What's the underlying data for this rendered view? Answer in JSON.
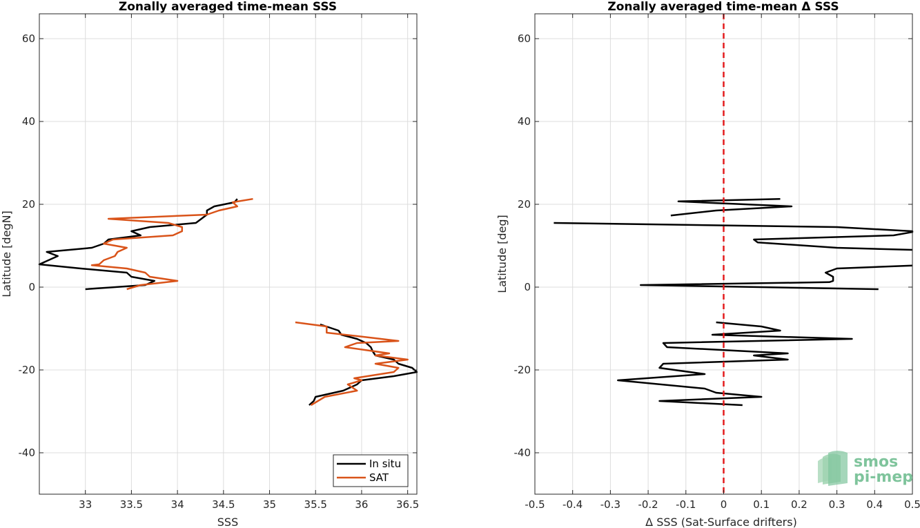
{
  "chart_data": [
    {
      "type": "line",
      "title": "Zonally averaged time-mean SSS",
      "xlabel": "SSS",
      "ylabel": "Latitude [degN]",
      "xlim": [
        32.5,
        36.6
      ],
      "ylim": [
        -50,
        66
      ],
      "xticks": [
        33,
        33.5,
        34,
        34.5,
        35,
        35.5,
        36,
        36.5
      ],
      "xtick_labels": [
        "33",
        "33.5",
        "34",
        "34.5",
        "35",
        "35.5",
        "36",
        "36.5"
      ],
      "yticks": [
        -40,
        -20,
        0,
        20,
        40,
        60
      ],
      "ytick_labels": [
        "-40",
        "-20",
        "0",
        "20",
        "40",
        "60"
      ],
      "grid": true,
      "legend_position": "bottom-right",
      "series": [
        {
          "name": "In situ",
          "color": "#000000",
          "segments": [
            [
              [
                34.65,
                21.3
              ],
              [
                34.62,
                20.5
              ],
              [
                34.4,
                19.5
              ],
              [
                34.32,
                18.5
              ],
              [
                34.32,
                17.5
              ],
              [
                34.2,
                15.5
              ],
              [
                33.7,
                14.5
              ],
              [
                33.5,
                13.5
              ],
              [
                33.6,
                12.5
              ],
              [
                33.25,
                11.5
              ],
              [
                33.2,
                10.5
              ],
              [
                33.07,
                9.5
              ],
              [
                32.58,
                8.5
              ],
              [
                32.7,
                7.5
              ],
              [
                32.6,
                6.5
              ],
              [
                32.5,
                5.5
              ],
              [
                32.95,
                4.5
              ],
              [
                33.45,
                3.5
              ],
              [
                33.5,
                2.5
              ],
              [
                33.75,
                1.5
              ],
              [
                33.65,
                0.5
              ],
              [
                33.0,
                -0.5
              ]
            ],
            [
              [
                35.55,
                -9.0
              ],
              [
                35.75,
                -10.5
              ],
              [
                35.78,
                -11.5
              ],
              [
                35.95,
                -12.5
              ],
              [
                36.05,
                -13.5
              ],
              [
                36.1,
                -14.5
              ],
              [
                36.12,
                -15.5
              ],
              [
                36.15,
                -16.5
              ],
              [
                36.35,
                -17.5
              ],
              [
                36.4,
                -18.5
              ],
              [
                36.55,
                -19.5
              ],
              [
                36.6,
                -20.5
              ],
              [
                36.35,
                -21.5
              ],
              [
                36.0,
                -22.5
              ],
              [
                35.95,
                -23.5
              ],
              [
                35.8,
                -25.0
              ],
              [
                35.5,
                -26.5
              ],
              [
                35.48,
                -27.5
              ],
              [
                35.43,
                -28.5
              ]
            ]
          ]
        },
        {
          "name": "SAT",
          "color": "#d95319",
          "segments": [
            [
              [
                34.82,
                21.3
              ],
              [
                34.6,
                20.5
              ],
              [
                34.65,
                19.5
              ],
              [
                34.45,
                18.5
              ],
              [
                34.32,
                17.5
              ],
              [
                33.25,
                16.5
              ],
              [
                33.9,
                15.5
              ],
              [
                34.05,
                14.5
              ],
              [
                34.05,
                13.5
              ],
              [
                33.95,
                12.5
              ],
              [
                33.3,
                11.5
              ],
              [
                33.2,
                10.5
              ],
              [
                33.45,
                9.5
              ],
              [
                33.35,
                8.5
              ],
              [
                33.32,
                7.5
              ],
              [
                33.2,
                6.5
              ],
              [
                33.15,
                5.5
              ],
              [
                33.07,
                5.3
              ],
              [
                33.45,
                4.5
              ],
              [
                33.65,
                3.5
              ],
              [
                33.7,
                2.5
              ],
              [
                34.0,
                1.5
              ],
              [
                33.6,
                0.5
              ],
              [
                33.45,
                -0.5
              ]
            ],
            [
              [
                35.28,
                -8.5
              ],
              [
                35.62,
                -9.5
              ],
              [
                35.62,
                -11.0
              ],
              [
                36.02,
                -12.0
              ],
              [
                36.4,
                -13.0
              ],
              [
                35.95,
                -13.5
              ],
              [
                35.82,
                -14.5
              ],
              [
                36.3,
                -16.0
              ],
              [
                36.15,
                -16.5
              ],
              [
                36.5,
                -17.5
              ],
              [
                36.15,
                -18.5
              ],
              [
                36.4,
                -19.5
              ],
              [
                36.35,
                -20.5
              ],
              [
                35.92,
                -22.0
              ],
              [
                36.0,
                -22.5
              ],
              [
                35.85,
                -23.5
              ],
              [
                35.95,
                -25.0
              ],
              [
                35.6,
                -26.5
              ],
              [
                35.45,
                -28.5
              ]
            ]
          ]
        }
      ]
    },
    {
      "type": "line",
      "title": "Zonally averaged time-mean Δ SSS",
      "xlabel": "Δ SSS (Sat-Surface drifters)",
      "ylabel": "Latitude [deg]",
      "xlim": [
        -0.5,
        0.5
      ],
      "ylim": [
        -50,
        66
      ],
      "xticks": [
        -0.5,
        -0.4,
        -0.3,
        -0.2,
        -0.1,
        0,
        0.1,
        0.2,
        0.3,
        0.4,
        0.5
      ],
      "xtick_labels": [
        "-0.5",
        "-0.4",
        "-0.3",
        "-0.2",
        "-0.1",
        "0",
        "0.1",
        "0.2",
        "0.3",
        "0.4",
        "0.5"
      ],
      "yticks": [
        -40,
        -20,
        0,
        20,
        40,
        60
      ],
      "ytick_labels": [
        "-40",
        "-20",
        "0",
        "20",
        "40",
        "60"
      ],
      "grid": true,
      "reference_line": {
        "x": 0,
        "color": "#e31a1c",
        "style": "dashed"
      },
      "series": [
        {
          "name": "",
          "color": "#000000",
          "segments": [
            [
              [
                0.15,
                21.3
              ],
              [
                -0.12,
                20.7
              ],
              [
                0.18,
                19.5
              ],
              [
                -0.02,
                18.5
              ],
              [
                -0.14,
                17.3
              ]
            ],
            [
              [
                -0.45,
                15.5
              ],
              [
                0.3,
                14.5
              ],
              [
                0.5,
                13.5
              ],
              [
                0.5,
                13.3
              ],
              [
                0.45,
                12.5
              ],
              [
                0.08,
                11.5
              ],
              [
                0.09,
                10.8
              ],
              [
                0.3,
                9.5
              ],
              [
                0.5,
                9.0
              ]
            ],
            [
              [
                0.5,
                5.2
              ],
              [
                0.3,
                4.5
              ],
              [
                0.27,
                3.5
              ],
              [
                0.29,
                2.5
              ],
              [
                0.29,
                1.5
              ],
              [
                0.28,
                1.2
              ],
              [
                -0.22,
                0.5
              ],
              [
                0.41,
                -0.5
              ]
            ],
            [
              [
                -0.02,
                -8.5
              ],
              [
                0.1,
                -9.5
              ],
              [
                0.15,
                -10.5
              ],
              [
                -0.03,
                -11.5
              ],
              [
                0.34,
                -12.5
              ],
              [
                -0.16,
                -13.5
              ],
              [
                -0.15,
                -14.5
              ],
              [
                0.17,
                -16.0
              ],
              [
                0.08,
                -16.5
              ],
              [
                0.17,
                -17.5
              ],
              [
                -0.16,
                -18.5
              ],
              [
                -0.17,
                -19.5
              ],
              [
                -0.05,
                -21.0
              ],
              [
                -0.28,
                -22.5
              ],
              [
                -0.05,
                -24.5
              ],
              [
                -0.02,
                -25.5
              ],
              [
                0.1,
                -26.5
              ],
              [
                -0.17,
                -27.5
              ],
              [
                0.05,
                -28.5
              ]
            ]
          ]
        }
      ]
    }
  ],
  "legend": {
    "items": [
      "In situ",
      "SAT"
    ]
  },
  "logo": {
    "line1": "smos",
    "line2": "pi-mep"
  }
}
